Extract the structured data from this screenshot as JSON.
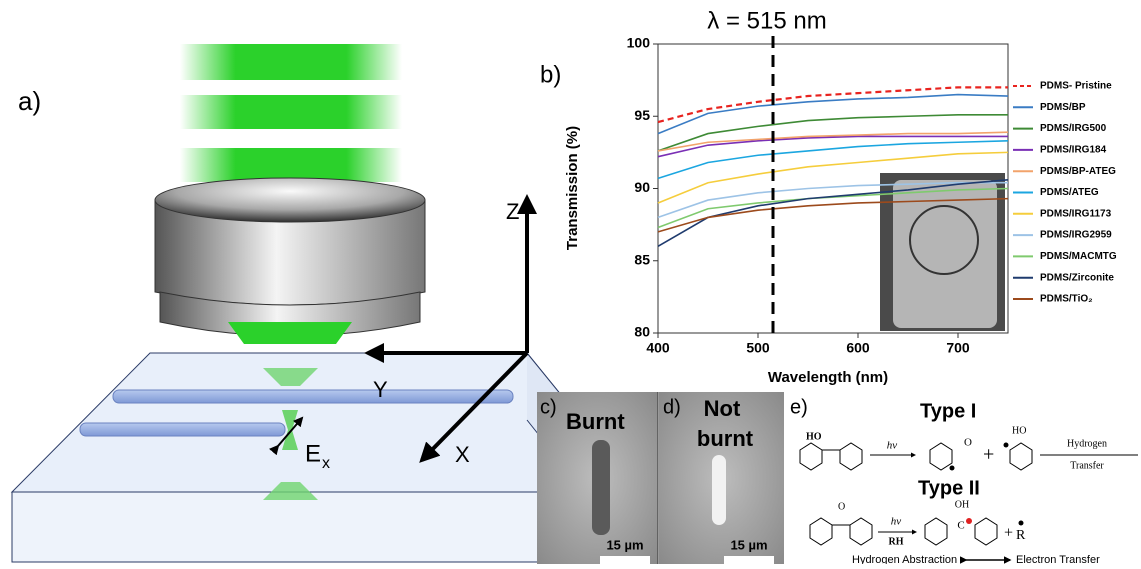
{
  "chart_data": {
    "type": "line",
    "panel_label": "b)",
    "annotation": "λ = 515 nm",
    "vline": 515,
    "xlabel": "Wavelength (nm)",
    "ylabel": "Transmission (%)",
    "xlim": [
      400,
      750
    ],
    "ylim": [
      80,
      100
    ],
    "xticks": [
      400,
      500,
      600,
      700
    ],
    "yticks": [
      80,
      85,
      90,
      95,
      100
    ],
    "x": [
      400,
      450,
      500,
      550,
      600,
      650,
      700,
      750
    ],
    "series": [
      {
        "name": "PDMS- Pristine",
        "color": "#e8231f",
        "dashed": true,
        "values": [
          94.6,
          95.5,
          96.0,
          96.4,
          96.6,
          96.8,
          97.0,
          97.0
        ]
      },
      {
        "name": "PDMS/BP",
        "color": "#3a7cc4",
        "values": [
          93.8,
          95.2,
          95.7,
          96.0,
          96.2,
          96.3,
          96.5,
          96.4
        ]
      },
      {
        "name": "PDMS/IRG500",
        "color": "#3e8a35",
        "values": [
          92.6,
          93.8,
          94.3,
          94.7,
          94.9,
          95.0,
          95.1,
          95.1
        ]
      },
      {
        "name": "PDMS/IRG184",
        "color": "#7a2fb5",
        "values": [
          92.2,
          93.0,
          93.3,
          93.5,
          93.6,
          93.6,
          93.6,
          93.6
        ]
      },
      {
        "name": "PDMS/BP-ATEG",
        "color": "#f2a36b",
        "values": [
          92.6,
          93.2,
          93.4,
          93.6,
          93.7,
          93.8,
          93.8,
          93.9
        ]
      },
      {
        "name": "PDMS/ATEG",
        "color": "#1ba6e0",
        "values": [
          90.7,
          91.8,
          92.3,
          92.6,
          92.9,
          93.1,
          93.2,
          93.3
        ]
      },
      {
        "name": "PDMS/IRG1173",
        "color": "#f5cd3c",
        "values": [
          89.0,
          90.4,
          91.0,
          91.5,
          91.8,
          92.1,
          92.4,
          92.5
        ]
      },
      {
        "name": "PDMS/IRG2959",
        "color": "#9dc3e6",
        "values": [
          88.0,
          89.2,
          89.7,
          90.0,
          90.2,
          90.3,
          90.4,
          90.4
        ]
      },
      {
        "name": "PDMS/MACMTG",
        "color": "#7fca6e",
        "values": [
          87.3,
          88.6,
          89.0,
          89.3,
          89.5,
          89.7,
          89.9,
          90.0
        ]
      },
      {
        "name": "PDMS/Zirconite",
        "color": "#1f3b6e",
        "values": [
          86.0,
          88.0,
          88.8,
          89.3,
          89.6,
          89.9,
          90.3,
          90.6
        ]
      },
      {
        "name": "PDMS/TiO₂",
        "color": "#9c4a1c",
        "values": [
          87.0,
          88.0,
          88.5,
          88.8,
          89.0,
          89.1,
          89.2,
          89.3
        ]
      }
    ]
  },
  "schematic": {
    "panel_label": "a)",
    "z": "Z",
    "y": "Y",
    "x": "X",
    "field": "E",
    "field_sub": "x"
  },
  "micrographs": {
    "c_label": "c)",
    "c_text": "Burnt",
    "d_label": "d)",
    "d_text": [
      "Not",
      "burnt"
    ],
    "c_scale": "15 µm",
    "d_scale": "15 µm"
  },
  "mechanism": {
    "panel_label": "e)",
    "type1": "Type I",
    "type2": "Type II",
    "hv1": "hv",
    "hv2": "hv",
    "rh": "RH",
    "ho1": "HO",
    "ho2": "HO",
    "o1": "O",
    "oh": "OH",
    "c": "C",
    "r": "R",
    "plus1": "+",
    "plus2": "+",
    "h_transfer": [
      "Hydrogen",
      "Transfer"
    ],
    "abstraction": "Hydrogen Abstraction",
    "e_transfer": "Electron Transfer"
  }
}
